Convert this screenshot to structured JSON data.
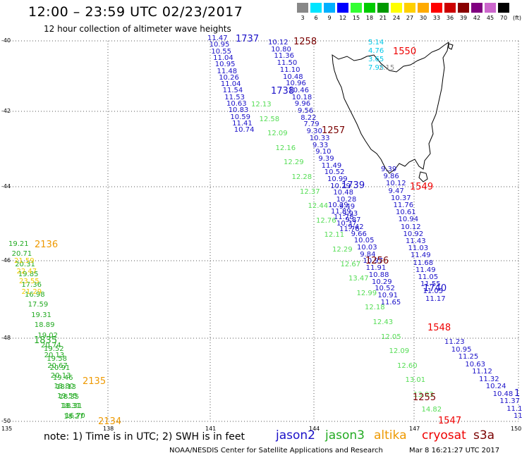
{
  "header": {
    "title": "12:00 – 23:59 UTC 02/23/2017",
    "subtitle": "12 hour collection of altimeter wave heights"
  },
  "color_scale": {
    "labels": [
      "3",
      "6",
      "9",
      "12",
      "15",
      "18",
      "21",
      "24",
      "27",
      "30",
      "33",
      "36",
      "39",
      "42",
      "45",
      "70",
      "(ft)"
    ],
    "colors": [
      "#888888",
      "#00e5ff",
      "#00b0ff",
      "#0000ff",
      "#33ff33",
      "#00cc00",
      "#009900",
      "#ffff00",
      "#ffd000",
      "#ffaa00",
      "#ff0000",
      "#cc0000",
      "#880000",
      "#800080",
      "#cc66cc",
      "#000000"
    ]
  },
  "axes": {
    "lat_labels": [
      "-40",
      "-42",
      "-44",
      "-46",
      "-48",
      "-50"
    ],
    "lon_labels": [
      "135",
      "138",
      "141",
      "144",
      "147",
      "150"
    ]
  },
  "tracks": {
    "jason2_a": {
      "color": "#1a10c8",
      "values": [
        "11.47",
        "10.95",
        "10.55",
        "11.04",
        "10.95",
        "11.48",
        "10.26",
        "11.04",
        "11.54",
        "11.53",
        "10.63",
        "10.83",
        "10.59",
        "11.41",
        "10.74"
      ]
    },
    "jason2_b": {
      "color": "#1a10c8",
      "values": [
        "10.12",
        "10.80",
        "11.36",
        "11.50",
        "11.10",
        "10.48",
        "10.96",
        "10.46",
        "10.18",
        "9.96",
        "9.56",
        "8.22",
        "7.79",
        "9.30",
        "10.33",
        "9.33",
        "9.10",
        "9.39",
        "11.49",
        "10.52",
        "10.99",
        "10.29",
        "10.48",
        "10.28",
        "9.49",
        "9.93",
        "9.87",
        "9.42",
        "9.66",
        "10.05",
        "10.03",
        "9.84",
        "10.97",
        "11.91",
        "10.88",
        "10.29",
        "10.52",
        "10.91",
        "11.65"
      ]
    },
    "jason2_c": {
      "color": "#1a10c8",
      "values": [
        "9.39",
        "9.86",
        "10.12",
        "9.47",
        "10.37",
        "11.76",
        "10.61",
        "10.94",
        "10.12",
        "10.92",
        "11.43",
        "11.03",
        "11.49",
        "11.68",
        "11.49",
        "11.05",
        "11.55",
        "11.05",
        "11.17"
      ]
    },
    "jason2_d": {
      "color": "#1a10c8",
      "values": [
        "11.23",
        "10.95",
        "11.25",
        "10.63",
        "11.12",
        "11.32",
        "10.24",
        "10.48",
        "11.37",
        "11.10",
        "11"
      ]
    },
    "jason2_e": {
      "color": "#1a10c8",
      "values": [
        "10.29",
        "11.89",
        "11.78",
        "10.37",
        "11.76"
      ]
    },
    "jason3_a": {
      "color": "#22aa22",
      "values": [
        "19.21",
        "20.71",
        "20.31",
        "19.85",
        "17.36",
        "16.98",
        "17.59",
        "19.31",
        "18.89",
        "19.02",
        "20.74",
        "20.13",
        "20.67",
        "20.13",
        "18.80",
        "19.55",
        "18.31",
        "18.27"
      ]
    },
    "jason3_b": {
      "color": "#22aa22",
      "values": [
        "19.52",
        "19.58",
        "20.91",
        "19.46",
        "18.13",
        "18.35",
        "18.31",
        "16.70"
      ]
    },
    "lightgreen_a": {
      "color": "#55dd55",
      "values": [
        "12.13",
        "12.58",
        "12.09",
        "12.16",
        "12.29",
        "12.28",
        "12.37",
        "12.44",
        "12.76",
        "12.11",
        "12.29",
        "12.67",
        "13.47",
        "12.99",
        "12.18",
        "12.43",
        "12.05",
        "12.09",
        "12.60",
        "13.01",
        "13.03",
        "14.82"
      ]
    },
    "cyan_a": {
      "color": "#00c8e8",
      "values": [
        "5.14",
        "4.76",
        "3.65",
        "7.95"
      ]
    },
    "yellow_a": {
      "color": "#eecc00",
      "values": [
        "21.59",
        "22.47",
        "23.55",
        "21.29"
      ]
    },
    "gray_a": {
      "color": "#888888",
      "values": [
        "2.15"
      ]
    }
  },
  "passes": [
    {
      "id": "1737",
      "color": "#1a10c8"
    },
    {
      "id": "1258",
      "color": "#7a0000"
    },
    {
      "id": "1550",
      "color": "#ee0000"
    },
    {
      "id": "1738",
      "color": "#1a10c8"
    },
    {
      "id": "1257",
      "color": "#7a0000"
    },
    {
      "id": "1739",
      "color": "#1a10c8"
    },
    {
      "id": "1549",
      "color": "#ee0000"
    },
    {
      "id": "2136",
      "color": "#ee9900"
    },
    {
      "id": "1256",
      "color": "#7a0000"
    },
    {
      "id": "1740",
      "color": "#1a10c8"
    },
    {
      "id": "1548",
      "color": "#ee0000"
    },
    {
      "id": "1835",
      "color": "#22aa22"
    },
    {
      "id": "2135",
      "color": "#ee9900"
    },
    {
      "id": "1255",
      "color": "#7a0000"
    },
    {
      "id": "2134",
      "color": "#ee9900"
    },
    {
      "id": "1547",
      "color": "#ee0000"
    },
    {
      "id": "1",
      "color": "#1a10c8"
    }
  ],
  "note": "note:  1) Time is in UTC;  2) SWH is in feet",
  "legend": [
    {
      "name": "jason2",
      "color": "#1a10c8"
    },
    {
      "name": "jason3",
      "color": "#22aa22"
    },
    {
      "name": "altika",
      "color": "#ee9900"
    },
    {
      "name": "cryosat",
      "color": "#ee0000"
    },
    {
      "name": "s3a",
      "color": "#7a0000"
    }
  ],
  "footer": "NOAA/NESDIS Center for Satellite Applications and Research",
  "footer_timestamp": "Mar  8 16:21:27 UTC 2017"
}
